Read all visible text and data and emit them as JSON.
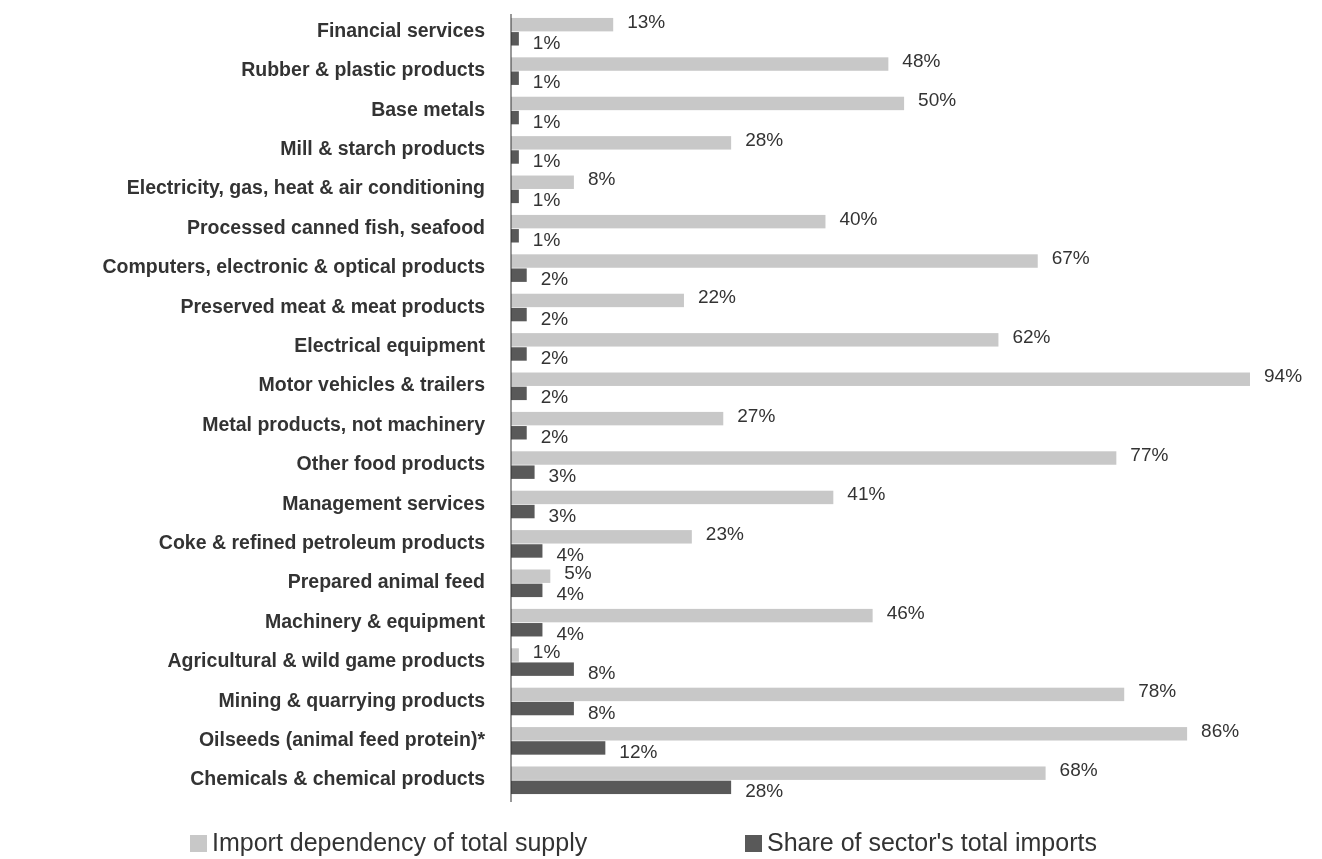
{
  "chart_data": {
    "type": "bar",
    "orientation": "horizontal",
    "legend": "bottom",
    "categories": [
      "Financial services",
      "Rubber & plastic products",
      "Base metals",
      "Mill & starch products",
      "Electricity, gas, heat & air conditioning",
      "Processed canned fish, seafood",
      "Computers, electronic & optical products",
      "Preserved meat & meat products",
      "Electrical equipment",
      "Motor vehicles & trailers",
      "Metal products, not machinery",
      "Other food products",
      "Management services",
      "Coke & refined petroleum products",
      "Prepared animal feed",
      "Machinery & equipment",
      "Agricultural & wild game products",
      "Mining & quarrying products",
      "Oilseeds (animal feed protein)*",
      "Chemicals & chemical products"
    ],
    "series": [
      {
        "name": "Import dependency of total supply",
        "color": "#c8c8c8",
        "values": [
          13,
          48,
          50,
          28,
          8,
          40,
          67,
          22,
          62,
          94,
          27,
          77,
          41,
          23,
          5,
          46,
          1,
          78,
          86,
          68
        ],
        "value_labels": [
          "13%",
          "48%",
          "50%",
          "28%",
          "8%",
          "40%",
          "67%",
          "22%",
          "62%",
          "94%",
          "27%",
          "77%",
          "41%",
          "23%",
          "5%",
          "46%",
          "1%",
          "78%",
          "86%",
          "68%"
        ]
      },
      {
        "name": "Share of sector's total imports",
        "color": "#595959",
        "values": [
          1,
          1,
          1,
          1,
          1,
          1,
          2,
          2,
          2,
          2,
          2,
          3,
          3,
          4,
          4,
          4,
          8,
          8,
          12,
          28
        ],
        "value_labels": [
          "1%",
          "1%",
          "1%",
          "1%",
          "1%",
          "1%",
          "2%",
          "2%",
          "2%",
          "2%",
          "2%",
          "3%",
          "3%",
          "4%",
          "4%",
          "4%",
          "8%",
          "8%",
          "12%",
          "28%"
        ]
      }
    ]
  }
}
